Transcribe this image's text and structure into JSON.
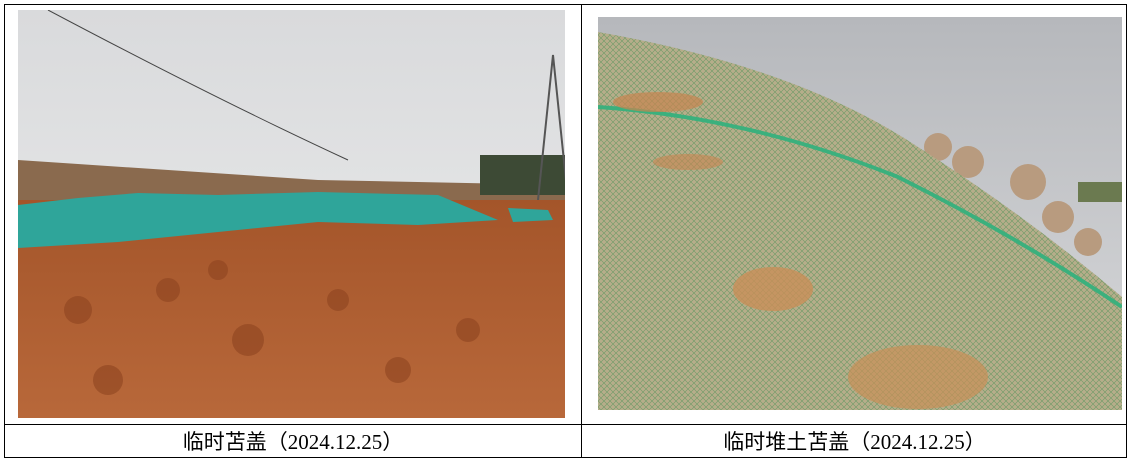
{
  "table": {
    "captions": [
      "临时苫盖（2024.12.25）",
      "临时堆土苫盖（2024.12.25）"
    ]
  }
}
